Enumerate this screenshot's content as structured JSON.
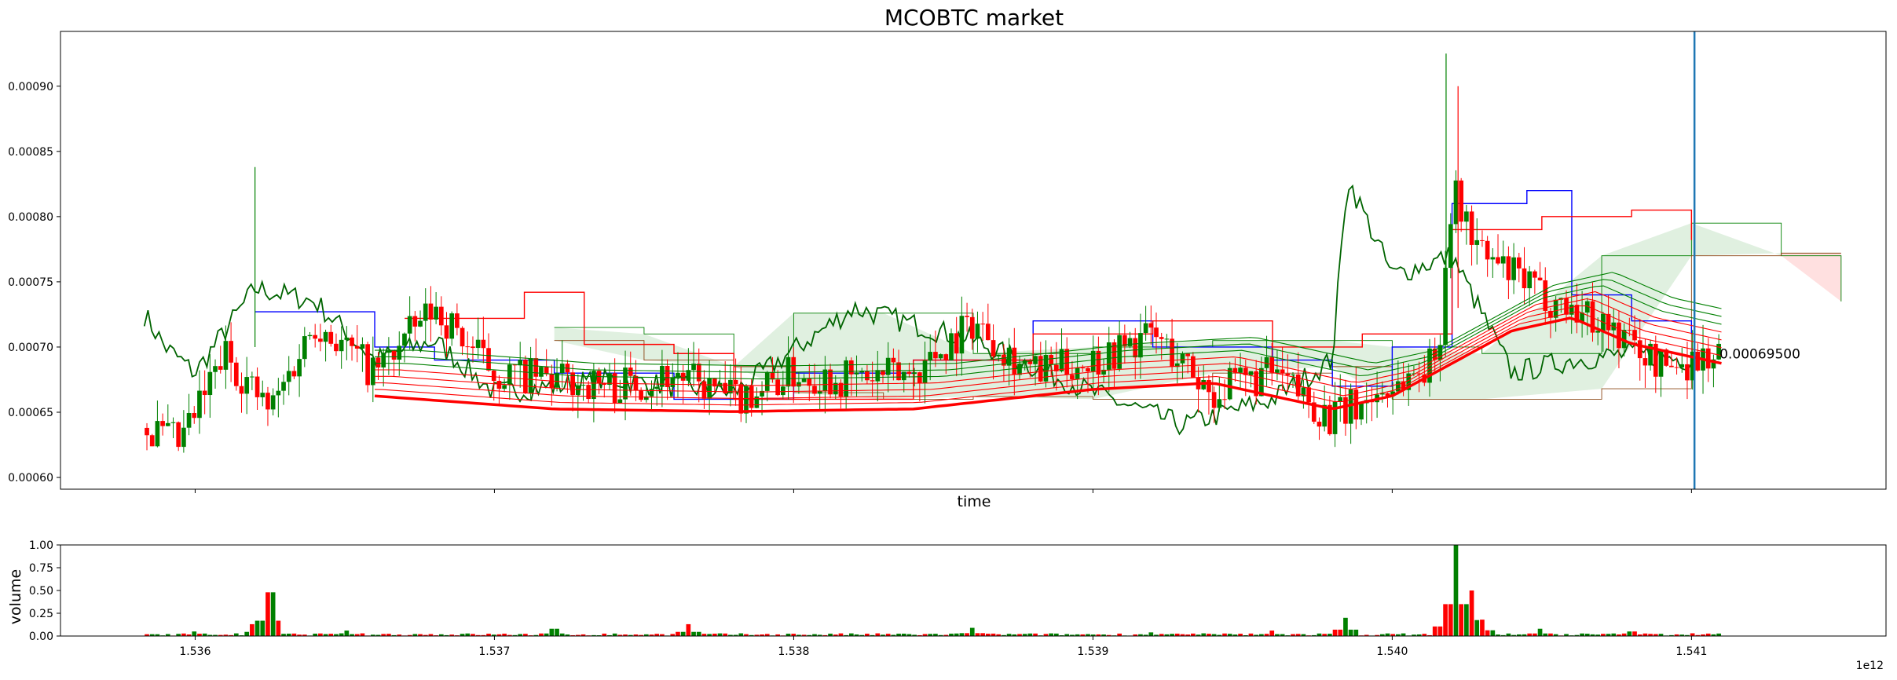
{
  "chart_data": [
    {
      "type": "candlestick",
      "title": "MCOBTC market",
      "xlabel": "time",
      "ylabel": "",
      "x_ticks": [
        1.536,
        1.537,
        1.538,
        1.539,
        1.54,
        1.541
      ],
      "x_tick_labels": [
        "1.536",
        "1.537",
        "1.538",
        "1.539",
        "1.540",
        "1.541"
      ],
      "x_offset_label": "1e12",
      "xlim": [
        1.53555,
        1.54165
      ],
      "y_ticks": [
        0.0006,
        0.00065,
        0.0007,
        0.00075,
        0.0008,
        0.00085,
        0.0009
      ],
      "y_tick_labels": [
        "0.00060",
        "0.00065",
        "0.00070",
        "0.00075",
        "0.00080",
        "0.00085",
        "0.00090"
      ],
      "ylim": [
        0.000591,
        0.000942
      ],
      "last_price_label": "0.00069500",
      "last_price": 0.000695,
      "marker_x": 1.54101,
      "grid": false,
      "colors": {
        "up": "#008000",
        "down": "#ff0000",
        "upper_band": "#0000ff",
        "ma_ribbon": "#ff0000",
        "green_line": "#006400",
        "cloud_up": "#008000",
        "cloud_down": "#ff0000",
        "marker": "#1f77b4"
      },
      "price_path": {
        "x": [
          1.53583,
          1.53595,
          1.5361,
          1.53625,
          1.5364,
          1.5366,
          1.5368,
          1.537,
          1.5372,
          1.5374,
          1.5376,
          1.5378,
          1.538,
          1.5382,
          1.5384,
          1.5386,
          1.5388,
          1.539,
          1.5392,
          1.5394,
          1.5396,
          1.5398,
          1.54,
          1.54015,
          1.5402,
          1.5403,
          1.5405,
          1.5407,
          1.5409,
          1.5411
        ],
        "close": [
          0.000638,
          0.000625,
          0.000695,
          0.00065,
          0.00072,
          0.00068,
          0.00073,
          0.00068,
          0.000675,
          0.00067,
          0.00068,
          0.00066,
          0.00068,
          0.000675,
          0.00068,
          0.00072,
          0.00068,
          0.00069,
          0.00071,
          0.000665,
          0.00068,
          0.000645,
          0.00067,
          0.00069,
          0.00082,
          0.00077,
          0.00074,
          0.00072,
          0.000685,
          0.000695
        ]
      },
      "ma_ribbon": {
        "x": [
          1.5366,
          1.5372,
          1.5378,
          1.5384,
          1.539,
          1.5394,
          1.5398,
          1.54,
          1.5402,
          1.5404,
          1.5406,
          1.5408,
          1.5411
        ],
        "y": [
          0.00068,
          0.00067,
          0.000668,
          0.00067,
          0.000685,
          0.00069,
          0.00067,
          0.00068,
          0.000705,
          0.00073,
          0.00074,
          0.00072,
          0.000705
        ]
      },
      "upper_band": {
        "x": [
          1.5362,
          1.5364,
          1.5366,
          1.5368,
          1.5372,
          1.5376,
          1.538,
          1.5384,
          1.5388,
          1.5392,
          1.5396,
          1.5398,
          1.54,
          1.5402,
          1.54045,
          1.5406,
          1.5408,
          1.541
        ],
        "y": [
          0.000727,
          0.000727,
          0.0007,
          0.00069,
          0.00068,
          0.00066,
          0.00068,
          0.00069,
          0.00072,
          0.0007,
          0.00069,
          0.00067,
          0.0007,
          0.00081,
          0.00082,
          0.00074,
          0.00072,
          0.00071
        ]
      },
      "red_line": {
        "x": [
          1.5367,
          1.5371,
          1.5373,
          1.5376,
          1.5378,
          1.538,
          1.5384,
          1.5388,
          1.5392,
          1.5396,
          1.5399,
          1.5402,
          1.5405,
          1.5408,
          1.541
        ],
        "y": [
          0.000722,
          0.000742,
          0.000702,
          0.000695,
          0.00066,
          0.00066,
          0.00069,
          0.00071,
          0.00072,
          0.0007,
          0.00071,
          0.00079,
          0.0008,
          0.000805,
          0.000782
        ]
      },
      "green_line": {
        "x": [
          1.53583,
          1.5359,
          1.536,
          1.5362,
          1.5364,
          1.5366,
          1.5368,
          1.537,
          1.5374,
          1.5378,
          1.5382,
          1.5386,
          1.539,
          1.5393,
          1.5396,
          1.5398,
          1.53985,
          1.54,
          1.5402,
          1.5404,
          1.5406,
          1.5408,
          1.541
        ],
        "y": [
          0.000725,
          0.0007,
          0.00068,
          0.000745,
          0.000735,
          0.00069,
          0.000705,
          0.000665,
          0.000675,
          0.000665,
          0.00073,
          0.000705,
          0.000665,
          0.00064,
          0.00066,
          0.00069,
          0.00083,
          0.000755,
          0.00077,
          0.00068,
          0.00069,
          0.000695,
          0.00069
        ]
      },
      "cloud": {
        "x": [
          1.5372,
          1.5375,
          1.5378,
          1.538,
          1.5383,
          1.5386,
          1.539,
          1.5394,
          1.5398,
          1.54,
          1.5403,
          1.5407,
          1.541,
          1.5413,
          1.5415
        ],
        "a": [
          0.000715,
          0.00071,
          0.000685,
          0.000726,
          0.000726,
          0.000695,
          0.0007,
          0.000705,
          0.000705,
          0.0007,
          0.000695,
          0.00077,
          0.000795,
          0.00077,
          0.000735
        ],
        "b": [
          0.000705,
          0.00069,
          0.000685,
          0.000665,
          0.00066,
          0.000662,
          0.00066,
          0.00068,
          0.000685,
          0.00066,
          0.00066,
          0.000668,
          0.00077,
          0.000772,
          0.000772
        ]
      }
    },
    {
      "type": "bar",
      "title": "",
      "xlabel": "",
      "ylabel": "volume",
      "y_ticks": [
        0,
        0.25,
        0.5,
        0.75,
        1.0
      ],
      "y_tick_labels": [
        "0.00",
        "0.25",
        "0.50",
        "0.75",
        "1.00"
      ],
      "ylim": [
        0,
        1
      ],
      "xlim": [
        1.53555,
        1.54165
      ],
      "peaks": {
        "x": [
          1.53585,
          1.536,
          1.5362,
          1.53625,
          1.5365,
          1.5372,
          1.53765,
          1.5386,
          1.5392,
          1.5396,
          1.53985,
          1.54018,
          1.54021,
          1.54026,
          1.5403,
          1.5405,
          1.5408,
          1.541
        ],
        "y": [
          0.02,
          0.05,
          0.13,
          0.48,
          0.06,
          0.08,
          0.13,
          0.09,
          0.04,
          0.06,
          0.2,
          0.3,
          1.0,
          0.5,
          0.18,
          0.08,
          0.05,
          0.03
        ]
      }
    }
  ]
}
